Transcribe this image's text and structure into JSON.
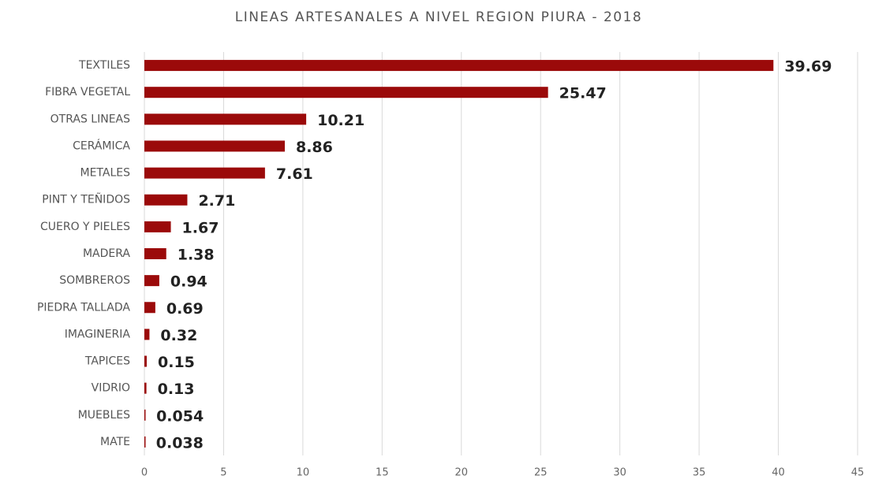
{
  "chart_data": {
    "type": "barh",
    "title": "LINEAS ARTESANALES A NIVEL REGION PIURA - 2018",
    "categories": [
      "TEXTILES",
      "FIBRA VEGETAL",
      "OTRAS LINEAS",
      "CERÁMICA",
      "METALES",
      "PINT Y TEÑIDOS",
      "CUERO Y PIELES",
      "MADERA",
      "SOMBREROS",
      "PIEDRA TALLADA",
      "IMAGINERIA",
      "TAPICES",
      "VIDRIO",
      "MUEBLES",
      "MATE"
    ],
    "values": [
      39.69,
      25.47,
      10.21,
      8.86,
      7.61,
      2.71,
      1.67,
      1.38,
      0.94,
      0.69,
      0.32,
      0.15,
      0.13,
      0.054,
      0.038
    ],
    "color": "#9b0a0a",
    "xlim": [
      0,
      45
    ],
    "xticks": [
      0,
      5,
      10,
      15,
      20,
      25,
      30,
      35,
      40,
      45
    ],
    "grid": true
  }
}
